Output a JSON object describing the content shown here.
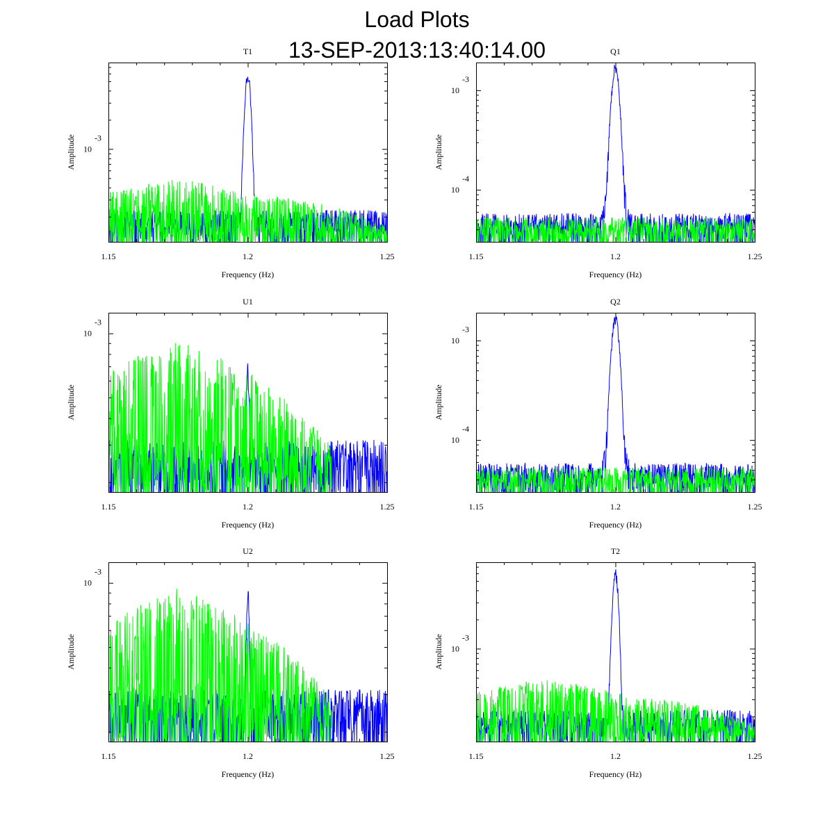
{
  "page": {
    "title": "Load Plots",
    "timestamp": "13-SEP-2013:13:40:14.00"
  },
  "colors": {
    "primary_series": "#0000ff",
    "secondary_series": "#00ff00",
    "frame": "#000000"
  },
  "chart_data": [
    {
      "type": "line",
      "title": "T1",
      "xlabel": "Frequency (Hz)",
      "ylabel": "Amplitude",
      "yscale": "log",
      "xlim": [
        1.15,
        1.25
      ],
      "ylim": [
        0.00011,
        0.0078
      ],
      "xticks": [
        {
          "value": 1.15,
          "label": "1.15"
        },
        {
          "value": 1.2,
          "label": "1.2"
        },
        {
          "value": 1.25,
          "label": "1.25"
        }
      ],
      "yticks": [
        {
          "value": 0.001,
          "base": "10",
          "exp": "-3"
        }
      ],
      "series": [
        {
          "name": "blue",
          "color": "#0000ff",
          "peak_freq": 1.2,
          "peak_amp": 0.0065,
          "peak_width": 0.0009,
          "skirt": 0.00018,
          "skirt_width": 0.004,
          "floor": 0.00013,
          "env": [
            [
              1.15,
              0.00022
            ],
            [
              1.25,
              0.00022
            ]
          ]
        },
        {
          "name": "green",
          "color": "#00ff00",
          "floor": 0.00011,
          "env": [
            [
              1.15,
              0.00032
            ],
            [
              1.175,
              0.00045
            ],
            [
              1.2,
              0.00032
            ],
            [
              1.225,
              0.00026
            ],
            [
              1.25,
              0.00016
            ]
          ],
          "stop": 1.25
        }
      ]
    },
    {
      "type": "line",
      "title": "Q1",
      "xlabel": "Frequency (Hz)",
      "ylabel": "Amplitude",
      "yscale": "log",
      "xlim": [
        1.15,
        1.25
      ],
      "ylim": [
        3e-05,
        0.0019
      ],
      "xticks": [
        {
          "value": 1.15,
          "label": "1.15"
        },
        {
          "value": 1.2,
          "label": "1.2"
        },
        {
          "value": 1.25,
          "label": "1.25"
        }
      ],
      "yticks": [
        {
          "value": 0.001,
          "base": "10",
          "exp": "-3"
        },
        {
          "value": 0.0001,
          "base": "10",
          "exp": "-4"
        }
      ],
      "series": [
        {
          "name": "blue",
          "color": "#0000ff",
          "peak_freq": 1.2,
          "peak_amp": 0.0018,
          "peak_width": 0.0012,
          "skirt": 9e-05,
          "skirt_width": 0.005,
          "floor": 3.2e-05,
          "env": [
            [
              1.15,
              5.5e-05
            ],
            [
              1.25,
              5.5e-05
            ]
          ]
        },
        {
          "name": "green",
          "color": "#00ff00",
          "floor": 3e-05,
          "env": [
            [
              1.15,
              5e-05
            ],
            [
              1.25,
              5e-05
            ]
          ],
          "stop": 1.25
        }
      ]
    },
    {
      "type": "line",
      "title": "U1",
      "xlabel": "Frequency (Hz)",
      "ylabel": "Amplitude",
      "yscale": "log",
      "xlim": [
        1.15,
        1.25
      ],
      "ylim": [
        0.00018,
        0.00125
      ],
      "xticks": [
        {
          "value": 1.15,
          "label": "1.15"
        },
        {
          "value": 1.2,
          "label": "1.2"
        },
        {
          "value": 1.25,
          "label": "1.25"
        }
      ],
      "yticks": [
        {
          "value": 0.001,
          "base": "10",
          "exp": "-3"
        }
      ],
      "series": [
        {
          "name": "blue",
          "color": "#0000ff",
          "peak_freq": 1.2,
          "peak_amp": 0.00075,
          "peak_width": 0.0006,
          "skirt": 0.0,
          "skirt_width": 0.003,
          "floor": 0.00019,
          "env": [
            [
              1.15,
              0.0003
            ],
            [
              1.23,
              0.0003
            ]
          ]
        },
        {
          "name": "green",
          "color": "#00ff00",
          "floor": 0.00018,
          "env": [
            [
              1.15,
              0.0006
            ],
            [
              1.175,
              0.00085
            ],
            [
              1.2,
              0.0006
            ],
            [
              1.22,
              0.00038
            ],
            [
              1.23,
              0.00028
            ]
          ],
          "stop": 1.23
        }
      ]
    },
    {
      "type": "line",
      "title": "Q2",
      "xlabel": "Frequency (Hz)",
      "ylabel": "Amplitude",
      "yscale": "log",
      "xlim": [
        1.15,
        1.25
      ],
      "ylim": [
        3e-05,
        0.0019
      ],
      "xticks": [
        {
          "value": 1.15,
          "label": "1.15"
        },
        {
          "value": 1.2,
          "label": "1.2"
        },
        {
          "value": 1.25,
          "label": "1.25"
        }
      ],
      "yticks": [
        {
          "value": 0.001,
          "base": "10",
          "exp": "-3"
        },
        {
          "value": 0.0001,
          "base": "10",
          "exp": "-4"
        }
      ],
      "series": [
        {
          "name": "blue",
          "color": "#0000ff",
          "peak_freq": 1.2,
          "peak_amp": 0.0018,
          "peak_width": 0.0012,
          "skirt": 9e-05,
          "skirt_width": 0.005,
          "floor": 3.2e-05,
          "env": [
            [
              1.15,
              5.5e-05
            ],
            [
              1.25,
              5.5e-05
            ]
          ]
        },
        {
          "name": "green",
          "color": "#00ff00",
          "floor": 3e-05,
          "env": [
            [
              1.15,
              5e-05
            ],
            [
              1.25,
              5e-05
            ]
          ],
          "stop": 1.25
        }
      ]
    },
    {
      "type": "line",
      "title": "U2",
      "xlabel": "Frequency (Hz)",
      "ylabel": "Amplitude",
      "yscale": "log",
      "xlim": [
        1.15,
        1.25
      ],
      "ylim": [
        0.00018,
        0.00125
      ],
      "xticks": [
        {
          "value": 1.15,
          "label": "1.15"
        },
        {
          "value": 1.2,
          "label": "1.2"
        },
        {
          "value": 1.25,
          "label": "1.25"
        }
      ],
      "yticks": [
        {
          "value": 0.001,
          "base": "10",
          "exp": "-3"
        }
      ],
      "series": [
        {
          "name": "blue",
          "color": "#0000ff",
          "peak_freq": 1.2,
          "peak_amp": 0.00099,
          "peak_width": 0.0006,
          "skirt": 0.0,
          "skirt_width": 0.003,
          "floor": 0.00019,
          "env": [
            [
              1.15,
              0.0003
            ],
            [
              1.23,
              0.0003
            ]
          ]
        },
        {
          "name": "green",
          "color": "#00ff00",
          "floor": 0.00018,
          "env": [
            [
              1.15,
              0.0006
            ],
            [
              1.175,
              0.00085
            ],
            [
              1.2,
              0.0006
            ],
            [
              1.22,
              0.00038
            ],
            [
              1.23,
              0.00028
            ]
          ],
          "stop": 1.23
        }
      ]
    },
    {
      "type": "line",
      "title": "T2",
      "xlabel": "Frequency (Hz)",
      "ylabel": "Amplitude",
      "yscale": "log",
      "xlim": [
        1.15,
        1.25
      ],
      "ylim": [
        0.00011,
        0.0078
      ],
      "xticks": [
        {
          "value": 1.15,
          "label": "1.15"
        },
        {
          "value": 1.2,
          "label": "1.2"
        },
        {
          "value": 1.25,
          "label": "1.25"
        }
      ],
      "yticks": [
        {
          "value": 0.001,
          "base": "10",
          "exp": "-3"
        }
      ],
      "series": [
        {
          "name": "blue",
          "color": "#0000ff",
          "peak_freq": 1.2,
          "peak_amp": 0.0065,
          "peak_width": 0.0009,
          "skirt": 0.00018,
          "skirt_width": 0.004,
          "floor": 0.00013,
          "env": [
            [
              1.15,
              0.00022
            ],
            [
              1.25,
              0.00022
            ]
          ]
        },
        {
          "name": "green",
          "color": "#00ff00",
          "floor": 0.00011,
          "env": [
            [
              1.15,
              0.00032
            ],
            [
              1.175,
              0.00045
            ],
            [
              1.2,
              0.00032
            ],
            [
              1.225,
              0.00026
            ],
            [
              1.25,
              0.00016
            ]
          ],
          "stop": 1.25
        }
      ]
    }
  ]
}
